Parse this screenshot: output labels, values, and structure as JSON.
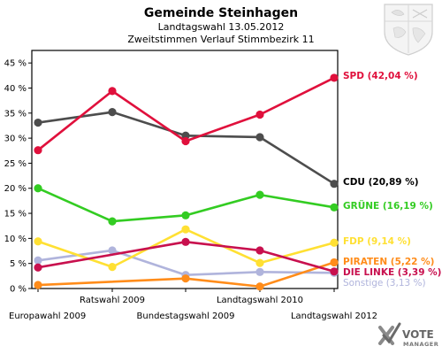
{
  "chart_data": {
    "type": "line",
    "title": "Gemeinde Steinhagen",
    "subtitle1": "Landtagswahl 13.05.2012",
    "subtitle2": "Zweitstimmen Verlauf Stimmbezirk 11",
    "x": [
      "Europawahl 2009",
      "Ratswahl 2009",
      "Bundestagswahl 2009",
      "Landtagswahl 2010",
      "Landtagswahl 2012"
    ],
    "ylim": [
      0,
      47.5
    ],
    "yticks": [
      0,
      5,
      10,
      15,
      20,
      25,
      30,
      35,
      40,
      45
    ],
    "ytick_labels": [
      "0 %",
      "5 %",
      "10 %",
      "15 %",
      "20 %",
      "25 %",
      "30 %",
      "35 %",
      "40 %",
      "45 %"
    ],
    "grid": false,
    "series": [
      {
        "name": "Sonstige",
        "label": "Sonstige (3,13 %)",
        "color": "#b0b4dc",
        "values": [
          5.6,
          7.6,
          2.7,
          3.3,
          3.13
        ]
      },
      {
        "name": "FDP",
        "label": "FDP (9,14 %)",
        "color": "#ffe033",
        "values": [
          9.4,
          4.3,
          11.8,
          5.1,
          9.14
        ]
      },
      {
        "name": "PIRATEN",
        "label": "PIRATEN (5,22 %)",
        "color": "#ff8c1a",
        "values": [
          0.7,
          null,
          2.0,
          0.4,
          5.22
        ]
      },
      {
        "name": "DIE LINKE",
        "label": "DIE LINKE (3,39 %)",
        "color": "#c8104e",
        "values": [
          4.2,
          null,
          9.3,
          7.6,
          3.39
        ]
      },
      {
        "name": "GRÜNE",
        "label": "GRÜNE (16,19 %)",
        "color": "#33cc22",
        "values": [
          20.0,
          13.4,
          14.6,
          18.7,
          16.19
        ]
      },
      {
        "name": "CDU",
        "label": "CDU (20,89 %)",
        "color": "#4d4d4d",
        "values": [
          33.1,
          35.2,
          30.5,
          30.2,
          20.89
        ]
      },
      {
        "name": "SPD",
        "label": "SPD (42,04 %)",
        "color": "#e0103c",
        "values": [
          27.6,
          39.4,
          29.4,
          34.7,
          42.04
        ]
      }
    ]
  },
  "branding": {
    "line1": "VOTE",
    "line2": "MANAGER"
  }
}
